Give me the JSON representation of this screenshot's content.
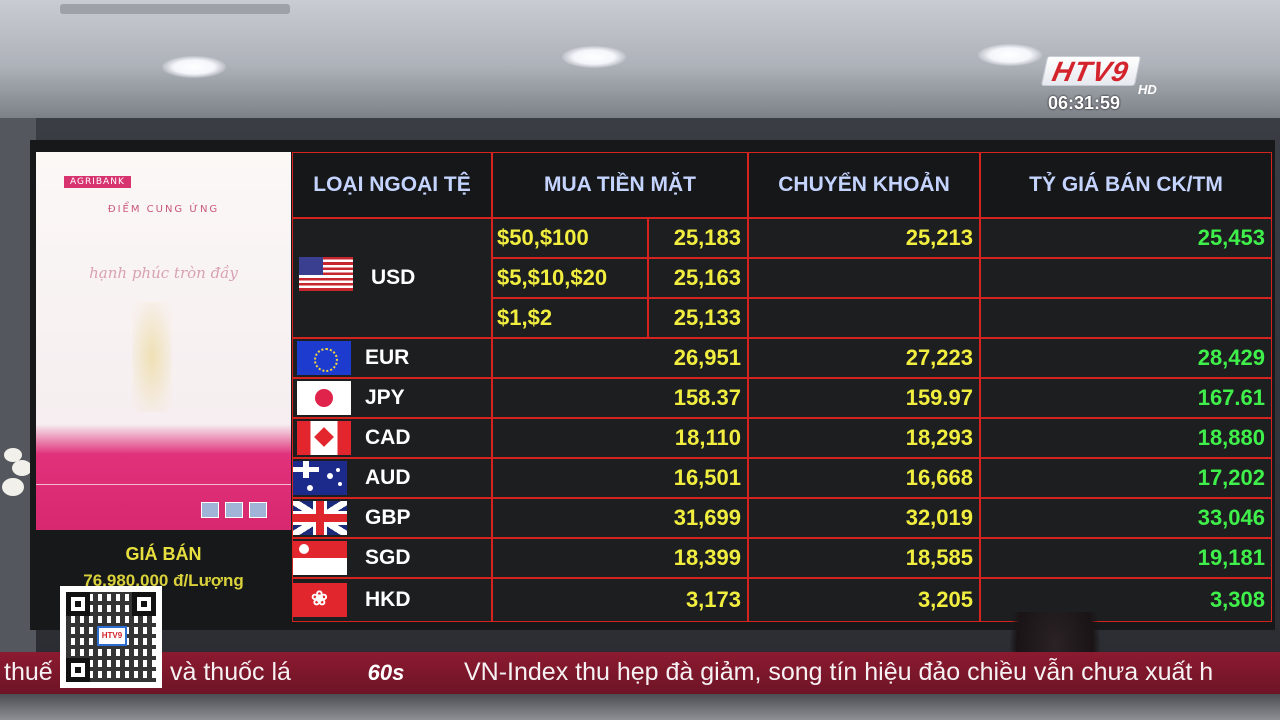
{
  "broadcast": {
    "logo_text": "HTV9",
    "logo_suffix": "HD",
    "clock": "06:31:59"
  },
  "ad_panel": {
    "bank": "AGRIBANK",
    "title": "ĐIỂM CUNG ỨNG",
    "script_line": "hạnh phúc tròn đầy",
    "price_label": "GIÁ BÁN",
    "price_value": "76,980,000 đ/Lượng"
  },
  "board": {
    "headers": [
      "LOẠI NGOẠI TỆ",
      "MUA TIỀN MẶT",
      "CHUYỂN KHOẢN",
      "TỶ GIÁ BÁN CK/TM"
    ],
    "usd": {
      "code": "USD",
      "flag": "usa-flag-icon",
      "denominations": [
        {
          "label": "$50,$100",
          "cash_buy": "25,183"
        },
        {
          "label": "$5,$10,$20",
          "cash_buy": "25,163"
        },
        {
          "label": "$1,$2",
          "cash_buy": "25,133"
        }
      ],
      "transfer": "25,213",
      "sell": "25,453"
    },
    "rows": [
      {
        "code": "EUR",
        "flag": "eu-flag-icon",
        "cash_buy": "26,951",
        "transfer": "27,223",
        "sell": "28,429"
      },
      {
        "code": "JPY",
        "flag": "japan-flag-icon",
        "cash_buy": "158.37",
        "transfer": "159.97",
        "sell": "167.61"
      },
      {
        "code": "CAD",
        "flag": "canada-flag-icon",
        "cash_buy": "18,110",
        "transfer": "18,293",
        "sell": "18,880"
      },
      {
        "code": "AUD",
        "flag": "australia-flag-icon",
        "cash_buy": "16,501",
        "transfer": "16,668",
        "sell": "17,202"
      },
      {
        "code": "GBP",
        "flag": "uk-flag-icon",
        "cash_buy": "31,699",
        "transfer": "32,019",
        "sell": "33,046"
      },
      {
        "code": "SGD",
        "flag": "singapore-flag-icon",
        "cash_buy": "18,399",
        "transfer": "18,585",
        "sell": "19,181"
      },
      {
        "code": "HKD",
        "flag": "hongkong-flag-icon",
        "cash_buy": "3,173",
        "transfer": "3,205",
        "sell": "3,308"
      }
    ]
  },
  "ticker": {
    "left_fragment": "thuế",
    "middle_fragment": "và thuốc lá",
    "separator": "60s",
    "headline": "VN-Index thu hẹp đà giảm, song tín hiệu đảo chiều vẫn chưa xuất h"
  },
  "colors": {
    "grid_red": "#d5241f",
    "header_text": "#c4d4ff",
    "buy_yellow": "#f1ee40",
    "sell_green": "#3ff04a",
    "ticker_bg": "#8c1a30"
  }
}
